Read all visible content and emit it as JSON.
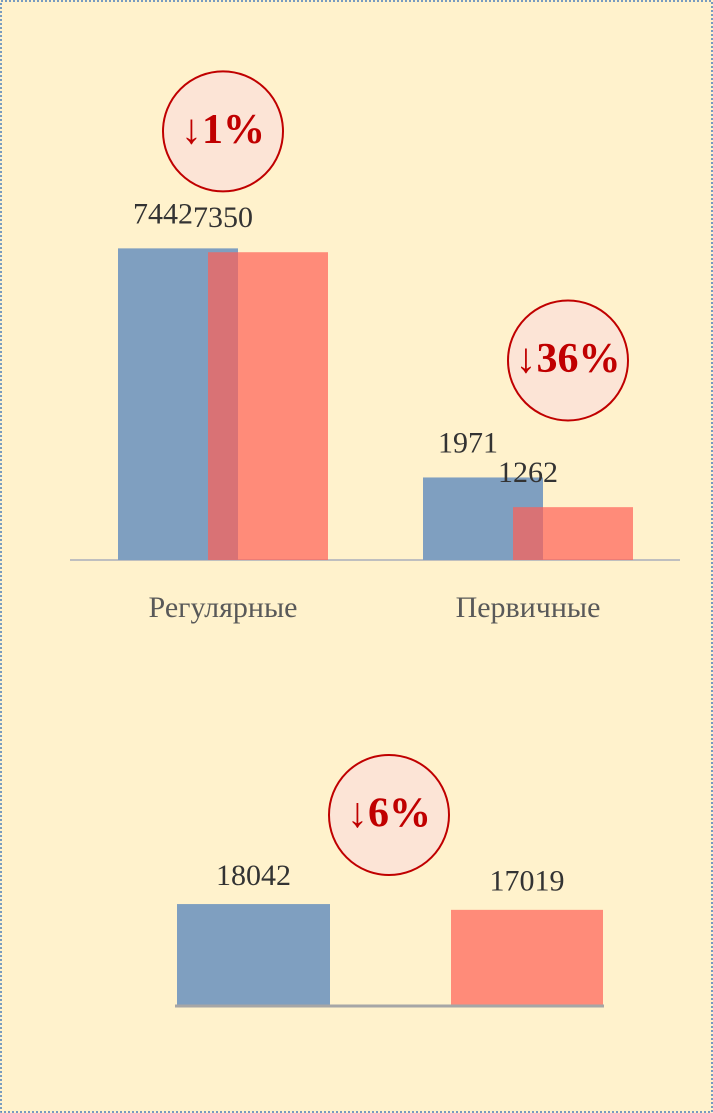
{
  "chart_data": [
    {
      "type": "bar",
      "categories": [
        "Регулярные",
        "Первичные"
      ],
      "series": [
        {
          "color": "#7f9fc0",
          "values": [
            7442,
            1971
          ]
        },
        {
          "color": "#ff5f55",
          "values": [
            7350,
            1262
          ]
        }
      ],
      "ylim": [
        0,
        8000
      ],
      "annotations": [
        "↓1%",
        "↓36%"
      ]
    },
    {
      "type": "bar",
      "categories": [
        null,
        null
      ],
      "values": [
        18042,
        17019
      ],
      "colors": [
        "#7f9fc0",
        "#ff5f55"
      ],
      "ylim": [
        0,
        20000
      ],
      "annotations": [
        "↓6%"
      ]
    }
  ]
}
